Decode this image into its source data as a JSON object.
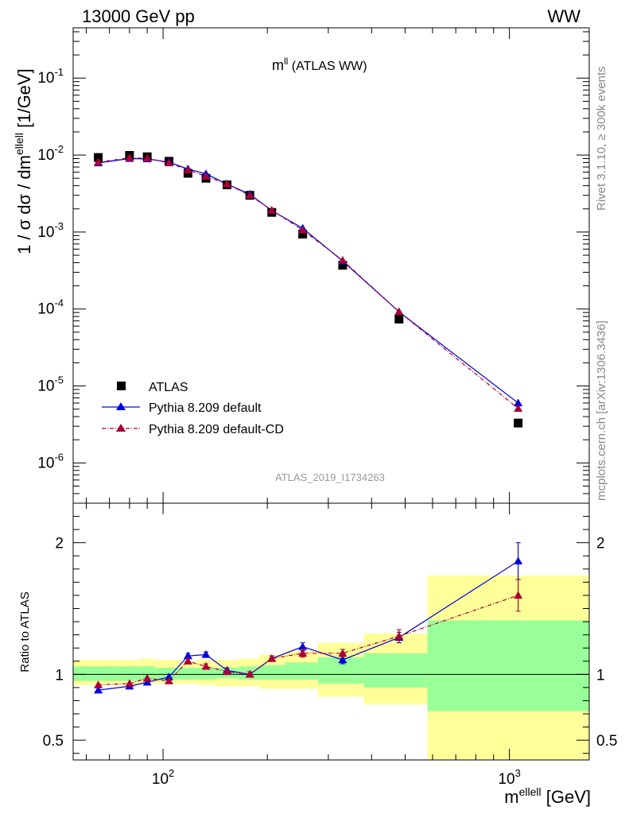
{
  "header": {
    "left": "13000 GeV pp",
    "right": "WW"
  },
  "plot_title": {
    "main": "m",
    "sup": "ll",
    "rest": " (ATLAS WW)"
  },
  "y_label": {
    "part1": "1 / σ  dσ / dm",
    "sup": "ellell",
    "part2": " [1/GeV]"
  },
  "x_label": {
    "main": "m",
    "sup": "ellell",
    "rest": " [GeV]"
  },
  "ratio_label": "Ratio to ATLAS",
  "analysis_id": "ATLAS_2019_I1734263",
  "side_text": {
    "rivet": "Rivet 3.1.10, ≥ 300k events",
    "mcplots": "mcplots.cern.ch [arXiv:1306.3436]"
  },
  "legend": {
    "atlas": "ATLAS",
    "pythia_default": "Pythia 8.209 default",
    "pythia_cd": "Pythia 8.209 default-CD"
  },
  "colors": {
    "atlas": "#000000",
    "pythia_default": "#0000dd",
    "pythia_cd": "#aa0033",
    "band_inner": "#99ff99",
    "band_outer": "#ffff99"
  },
  "chart_data": [
    {
      "type": "scatter",
      "panel": "main",
      "x_scale": "log",
      "y_scale": "log",
      "xlim": [
        55,
        1700
      ],
      "ylim": [
        3e-07,
        0.45
      ],
      "x_major_ticks": [
        {
          "value": 100,
          "base": "10",
          "exp": "2"
        },
        {
          "value": 1000,
          "base": "10",
          "exp": "3"
        }
      ],
      "y_major_ticks": [
        {
          "value": 1e-06,
          "base": "10",
          "exp": "-6"
        },
        {
          "value": 1e-05,
          "base": "10",
          "exp": "-5"
        },
        {
          "value": 0.0001,
          "base": "10",
          "exp": "-4"
        },
        {
          "value": 0.001,
          "base": "10",
          "exp": "-3"
        },
        {
          "value": 0.01,
          "base": "10",
          "exp": "-2"
        },
        {
          "value": 0.1,
          "base": "10",
          "exp": "-1"
        }
      ],
      "legend_position": "bottom-left",
      "x": [
        65,
        80,
        90,
        104,
        118,
        133,
        153,
        178,
        206,
        253,
        330,
        480,
        1060
      ],
      "series": [
        {
          "name": "ATLAS",
          "marker": "square",
          "values": [
            0.0093,
            0.0099,
            0.0095,
            0.0083,
            0.0058,
            0.005,
            0.0041,
            0.003,
            0.0018,
            0.00094,
            0.00037,
            7.4e-05,
            3.3e-06
          ]
        },
        {
          "name": "Pythia 8.209 default",
          "marker": "triangle",
          "line": "solid",
          "values": [
            0.0079,
            0.009,
            0.0089,
            0.0081,
            0.0066,
            0.0057,
            0.0042,
            0.0031,
            0.0019,
            0.00112,
            0.00042,
            9.2e-05,
            6e-06
          ]
        },
        {
          "name": "Pythia 8.209 default-CD",
          "marker": "triangle",
          "line": "dashdot",
          "values": [
            0.0081,
            0.0092,
            0.0091,
            0.0079,
            0.0064,
            0.0053,
            0.0042,
            0.003,
            0.00192,
            0.00106,
            0.00043,
            9.2e-05,
            5.1e-06
          ]
        }
      ]
    },
    {
      "type": "line",
      "panel": "ratio",
      "x_scale": "log",
      "y_scale": "linear",
      "xlim": [
        55,
        1700
      ],
      "ylim": [
        0.35,
        2.3
      ],
      "y_major_ticks": [
        0.5,
        1,
        2
      ],
      "reference_line": 1,
      "x": [
        65,
        80,
        90,
        104,
        118,
        133,
        153,
        178,
        206,
        253,
        330,
        480,
        1060
      ],
      "series": [
        {
          "name": "Pythia 8.209 default",
          "values": [
            0.88,
            0.91,
            0.94,
            0.98,
            1.14,
            1.15,
            1.03,
            1.0,
            1.12,
            1.21,
            1.11,
            1.28,
            1.86
          ],
          "errors": [
            0.01,
            0.01,
            0.01,
            0.01,
            0.02,
            0.02,
            0.02,
            0.02,
            0.02,
            0.03,
            0.03,
            0.04,
            0.14
          ]
        },
        {
          "name": "Pythia 8.209 default-CD",
          "values": [
            0.92,
            0.93,
            0.97,
            0.95,
            1.1,
            1.06,
            1.02,
            1.0,
            1.12,
            1.16,
            1.16,
            1.29,
            1.6
          ],
          "errors": [
            0.01,
            0.01,
            0.01,
            0.01,
            0.02,
            0.02,
            0.02,
            0.02,
            0.02,
            0.03,
            0.03,
            0.05,
            0.12
          ]
        }
      ],
      "uncertainty_bands": {
        "bin_edges": [
          55,
          73,
          86,
          95,
          112,
          125,
          142,
          165,
          190,
          225,
          280,
          380,
          580,
          1700
        ],
        "inner_lo": [
          0.95,
          0.95,
          0.96,
          0.96,
          0.96,
          0.96,
          0.97,
          0.96,
          0.96,
          0.96,
          0.93,
          0.9,
          0.72
        ],
        "inner_hi": [
          1.06,
          1.06,
          1.06,
          1.05,
          1.05,
          1.05,
          1.05,
          1.06,
          1.07,
          1.09,
          1.13,
          1.16,
          1.41
        ],
        "outer_lo": [
          0.92,
          0.92,
          0.93,
          0.93,
          0.93,
          0.92,
          0.91,
          0.91,
          0.89,
          0.89,
          0.83,
          0.77,
          0.35
        ],
        "outer_hi": [
          1.11,
          1.11,
          1.12,
          1.11,
          1.1,
          1.11,
          1.11,
          1.12,
          1.15,
          1.18,
          1.24,
          1.31,
          1.75
        ]
      }
    }
  ]
}
